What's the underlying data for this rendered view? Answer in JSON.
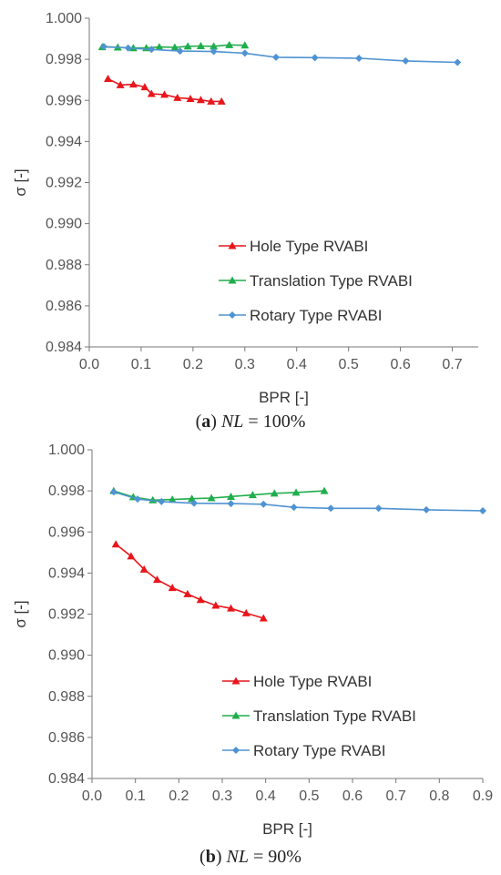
{
  "chart_data": [
    {
      "type": "line",
      "panel_id": "a",
      "caption": {
        "letter": "a",
        "variable": "NL",
        "value_text": " = 100%"
      },
      "xlabel": "BPR [-]",
      "ylabel": "σ [-]",
      "xlim": [
        0,
        0.75
      ],
      "ylim": [
        0.984,
        1.0
      ],
      "xticks": [
        "0.0",
        "0.1",
        "0.2",
        "0.3",
        "0.4",
        "0.5",
        "0.6",
        "0.7"
      ],
      "xtick_values": [
        0,
        0.1,
        0.2,
        0.3,
        0.4,
        0.5,
        0.6,
        0.7
      ],
      "yticks": [
        "0.984",
        "0.986",
        "0.988",
        "0.990",
        "0.992",
        "0.994",
        "0.996",
        "0.998",
        "1.000"
      ],
      "ytick_values": [
        0.984,
        0.986,
        0.988,
        0.99,
        0.992,
        0.994,
        0.996,
        0.998,
        1.0
      ],
      "grid": false,
      "legend_position": "lower-right",
      "series": [
        {
          "name": "Hole Type RVABI",
          "color": "#e8161b",
          "marker": "triangle",
          "x": [
            0.036,
            0.06,
            0.085,
            0.107,
            0.12,
            0.145,
            0.17,
            0.195,
            0.215,
            0.235,
            0.255
          ],
          "y": [
            0.99705,
            0.99675,
            0.99678,
            0.99665,
            0.99632,
            0.99628,
            0.99613,
            0.99608,
            0.99602,
            0.99595,
            0.99595
          ]
        },
        {
          "name": "Translation Type RVABI",
          "color": "#1fae4b",
          "marker": "triangle",
          "x": [
            0.025,
            0.055,
            0.085,
            0.11,
            0.135,
            0.165,
            0.19,
            0.215,
            0.24,
            0.27,
            0.3
          ],
          "y": [
            0.9986,
            0.99858,
            0.99855,
            0.99855,
            0.9986,
            0.99858,
            0.99863,
            0.99865,
            0.99863,
            0.9987,
            0.99868
          ]
        },
        {
          "name": "Rotary Type RVABI",
          "color": "#4f93d2",
          "marker": "diamond",
          "x": [
            0.028,
            0.075,
            0.12,
            0.175,
            0.24,
            0.3,
            0.36,
            0.435,
            0.52,
            0.61,
            0.71
          ],
          "y": [
            0.99862,
            0.99855,
            0.99848,
            0.9984,
            0.99838,
            0.9983,
            0.9981,
            0.99808,
            0.99805,
            0.99792,
            0.99785
          ]
        }
      ]
    },
    {
      "type": "line",
      "panel_id": "b",
      "caption": {
        "letter": "b",
        "variable": "NL",
        "value_text": " = 90%"
      },
      "xlabel": "BPR [-]",
      "ylabel": "σ [-]",
      "xlim": [
        0,
        0.9
      ],
      "ylim": [
        0.984,
        1.0
      ],
      "xticks": [
        "0.0",
        "0.1",
        "0.2",
        "0.3",
        "0.4",
        "0.5",
        "0.6",
        "0.7",
        "0.8",
        "0.9"
      ],
      "xtick_values": [
        0,
        0.1,
        0.2,
        0.3,
        0.4,
        0.5,
        0.6,
        0.7,
        0.8,
        0.9
      ],
      "yticks": [
        "0.984",
        "0.986",
        "0.988",
        "0.990",
        "0.992",
        "0.994",
        "0.996",
        "0.998",
        "1.000"
      ],
      "ytick_values": [
        0.984,
        0.986,
        0.988,
        0.99,
        0.992,
        0.994,
        0.996,
        0.998,
        1.0
      ],
      "grid": false,
      "legend_position": "lower-right",
      "series": [
        {
          "name": "Hole Type RVABI",
          "color": "#e8161b",
          "marker": "triangle",
          "x": [
            0.055,
            0.09,
            0.12,
            0.15,
            0.185,
            0.22,
            0.25,
            0.285,
            0.32,
            0.355,
            0.395
          ],
          "y": [
            0.9954,
            0.99482,
            0.99418,
            0.99368,
            0.99328,
            0.99298,
            0.9927,
            0.99242,
            0.99228,
            0.99205,
            0.9918
          ]
        },
        {
          "name": "Translation Type RVABI",
          "color": "#1fae4b",
          "marker": "triangle",
          "x": [
            0.05,
            0.095,
            0.14,
            0.185,
            0.23,
            0.275,
            0.32,
            0.37,
            0.42,
            0.47,
            0.535
          ],
          "y": [
            0.998,
            0.9977,
            0.99755,
            0.99758,
            0.99762,
            0.99765,
            0.99772,
            0.9978,
            0.99788,
            0.99792,
            0.998
          ]
        },
        {
          "name": "Rotary Type RVABI",
          "color": "#4f93d2",
          "marker": "diamond",
          "x": [
            0.05,
            0.105,
            0.16,
            0.235,
            0.32,
            0.395,
            0.465,
            0.55,
            0.66,
            0.77,
            0.9
          ],
          "y": [
            0.99795,
            0.9976,
            0.99748,
            0.9974,
            0.99738,
            0.99735,
            0.9972,
            0.99715,
            0.99715,
            0.99708,
            0.99703
          ]
        }
      ]
    }
  ]
}
